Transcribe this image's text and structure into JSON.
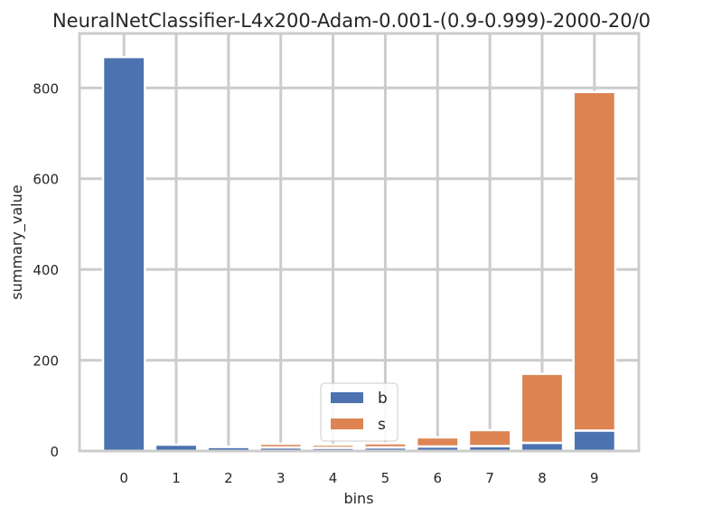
{
  "chart_data": {
    "type": "bar",
    "stacked": true,
    "title": "NeuralNetClassifier-L4x200-Adam-0.001-(0.9-0.999)-2000-20/0",
    "xlabel": "bins",
    "ylabel": "summary_value",
    "categories": [
      "0",
      "1",
      "2",
      "3",
      "4",
      "5",
      "6",
      "7",
      "8",
      "9"
    ],
    "yticks": [
      "0",
      "200",
      "400",
      "600",
      "800"
    ],
    "ylim": [
      0,
      920
    ],
    "grid": true,
    "legend_position": "lower center",
    "series": [
      {
        "name": "b",
        "color": "#4c72b0",
        "values": [
          868,
          14,
          9,
          8,
          7,
          8,
          10,
          11,
          18,
          45
        ]
      },
      {
        "name": "s",
        "color": "#dd8452",
        "values": [
          0,
          0,
          1,
          8,
          7,
          9,
          20,
          35,
          152,
          746
        ]
      }
    ]
  }
}
